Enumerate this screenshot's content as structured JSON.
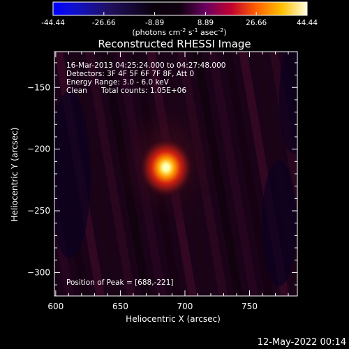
{
  "colorbar": {
    "ticks": [
      "-44.44",
      "-26.66",
      "-8.89",
      "8.89",
      "26.66",
      "44.44"
    ],
    "tick_values": [
      -44.44,
      -26.66,
      -8.89,
      8.89,
      26.66,
      44.44
    ],
    "range": [
      -44.44,
      44.44
    ],
    "units_main": "(photons cm",
    "units_exp1": "-2",
    "units_mid1": " s",
    "units_exp2": "-1",
    "units_mid2": " asec",
    "units_exp3": "-2",
    "units_close": ")"
  },
  "info": {
    "line1": "16-Mar-2013 04:25:24.000 to 04:27:48.000",
    "line2": "Detectors: 3F 4F 5F 6F 7F 8F, Att 0",
    "line3": "Energy Range: 3.0 - 6.0 keV",
    "line4_a": "Clean",
    "line4_b": "Total counts: 1.05E+06",
    "peak": "Position of Peak = [688,-221]"
  },
  "timestamp": "12-May-2022 00:14",
  "colors": {
    "background": "#000000",
    "text": "#ffffff"
  },
  "chart_data": {
    "type": "heatmap",
    "title": "Reconstructed RHESSI Image",
    "xlabel": "Heliocentric X (arcsec)",
    "ylabel": "Heliocentric Y (arcsec)",
    "xlim": [
      599,
      787
    ],
    "ylim": [
      -319,
      -121
    ],
    "x_ticks": [
      600,
      650,
      700,
      750
    ],
    "y_ticks": [
      -150,
      -200,
      -250,
      -300
    ],
    "colormap": "blue-black-red-yellow-white",
    "peak": {
      "x": 688,
      "y": -221,
      "value": 44.44
    },
    "grid": false,
    "legend": "none"
  }
}
